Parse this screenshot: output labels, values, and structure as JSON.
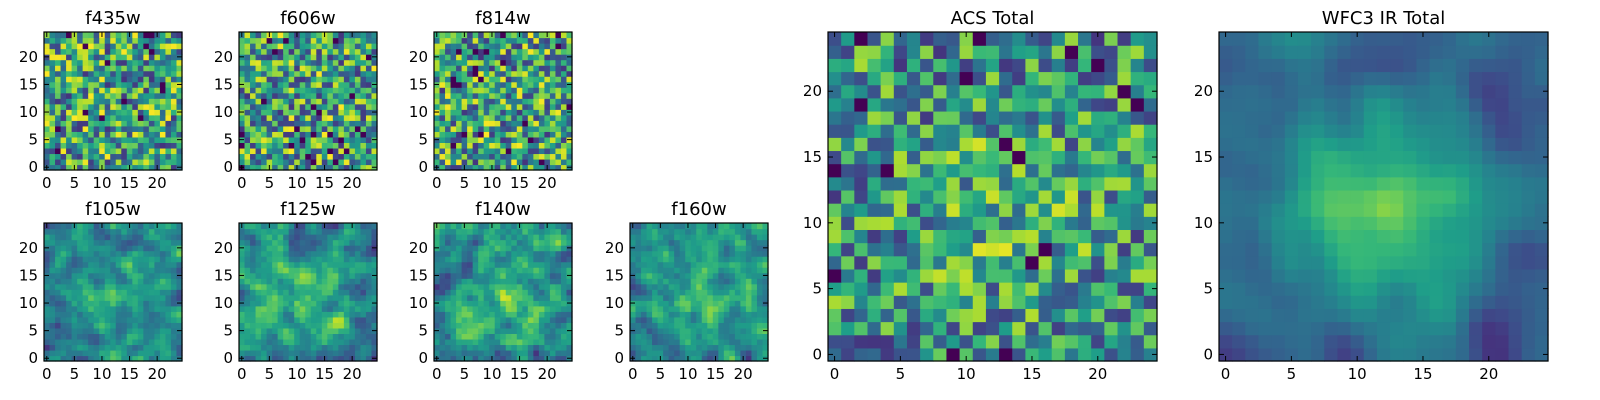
{
  "chart_data": [
    {
      "type": "heatmap",
      "title": "f435w",
      "grid_size": 25,
      "colormap": "viridis",
      "x_ticks": [
        "0",
        "5",
        "10",
        "15",
        "20"
      ],
      "y_ticks": [
        "0",
        "5",
        "10",
        "15",
        "20"
      ],
      "seed": 11,
      "smooth": 0,
      "blob": 0
    },
    {
      "type": "heatmap",
      "title": "f606w",
      "grid_size": 25,
      "colormap": "viridis",
      "x_ticks": [
        "0",
        "5",
        "10",
        "15",
        "20"
      ],
      "y_ticks": [
        "0",
        "5",
        "10",
        "15",
        "20"
      ],
      "seed": 23,
      "smooth": 0,
      "blob": 0
    },
    {
      "type": "heatmap",
      "title": "f814w",
      "grid_size": 25,
      "colormap": "viridis",
      "x_ticks": [
        "0",
        "5",
        "10",
        "15",
        "20"
      ],
      "y_ticks": [
        "0",
        "5",
        "10",
        "15",
        "20"
      ],
      "seed": 37,
      "smooth": 0,
      "blob": 0
    },
    {
      "type": "heatmap",
      "title": "f105w",
      "grid_size": 25,
      "colormap": "viridis",
      "x_ticks": [
        "0",
        "5",
        "10",
        "15",
        "20"
      ],
      "y_ticks": [
        "0",
        "5",
        "10",
        "15",
        "20"
      ],
      "seed": 41,
      "smooth": 1,
      "blob": 0.25
    },
    {
      "type": "heatmap",
      "title": "f125w",
      "grid_size": 25,
      "colormap": "viridis",
      "x_ticks": [
        "0",
        "5",
        "10",
        "15",
        "20"
      ],
      "y_ticks": [
        "0",
        "5",
        "10",
        "15",
        "20"
      ],
      "seed": 53,
      "smooth": 1,
      "blob": 0.2
    },
    {
      "type": "heatmap",
      "title": "f140w",
      "grid_size": 25,
      "colormap": "viridis",
      "x_ticks": [
        "0",
        "5",
        "10",
        "15",
        "20"
      ],
      "y_ticks": [
        "0",
        "5",
        "10",
        "15",
        "20"
      ],
      "seed": 67,
      "smooth": 1,
      "blob": 0.2
    },
    {
      "type": "heatmap",
      "title": "f160w",
      "grid_size": 25,
      "colormap": "viridis",
      "x_ticks": [
        "0",
        "5",
        "10",
        "15",
        "20"
      ],
      "y_ticks": [
        "0",
        "5",
        "10",
        "15",
        "20"
      ],
      "seed": 79,
      "smooth": 1,
      "blob": 0.25
    },
    {
      "type": "heatmap",
      "title": "ACS Total",
      "grid_size": 25,
      "colormap": "viridis",
      "x_ticks": [
        "0",
        "5",
        "10",
        "15",
        "20"
      ],
      "y_ticks": [
        "0",
        "5",
        "10",
        "15",
        "20"
      ],
      "seed": 97,
      "smooth": 0,
      "blob": 0.15
    },
    {
      "type": "heatmap",
      "title": "WFC3 IR Total",
      "grid_size": 25,
      "colormap": "viridis",
      "x_ticks": [
        "0",
        "5",
        "10",
        "15",
        "20"
      ],
      "y_ticks": [
        "0",
        "5",
        "10",
        "15",
        "20"
      ],
      "seed": 131,
      "smooth": 2,
      "blob": 0.6
    }
  ]
}
